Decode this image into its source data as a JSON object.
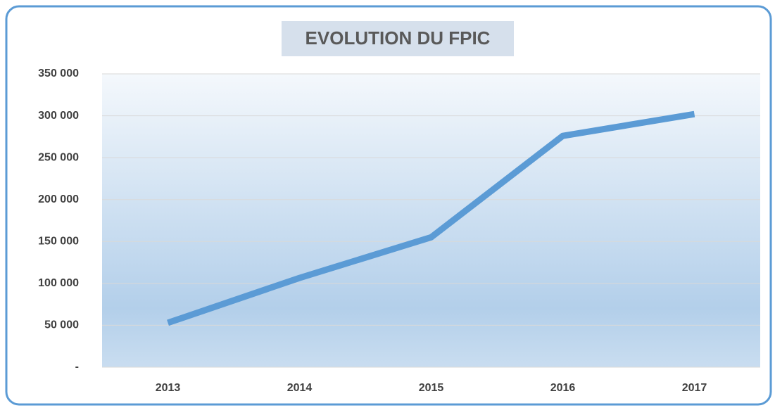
{
  "chart_data": {
    "type": "line",
    "title": "EVOLUTION DU FPIC",
    "categories": [
      "2013",
      "2014",
      "2015",
      "2016",
      "2017"
    ],
    "series": [
      {
        "name": "FPIC",
        "color": "#5b9bd5",
        "values": [
          53000,
          106500,
          155000,
          276000,
          302000
        ]
      }
    ],
    "ylim": [
      0,
      350000
    ],
    "yticks": [
      {
        "value": 0,
        "label": "-"
      },
      {
        "value": 50000,
        "label": "50 000"
      },
      {
        "value": 100000,
        "label": "100 000"
      },
      {
        "value": 150000,
        "label": "150 000"
      },
      {
        "value": 200000,
        "label": "200 000"
      },
      {
        "value": 250000,
        "label": "250 000"
      },
      {
        "value": 300000,
        "label": "300 000"
      },
      {
        "value": 350000,
        "label": "350 000"
      }
    ],
    "grid": true
  }
}
